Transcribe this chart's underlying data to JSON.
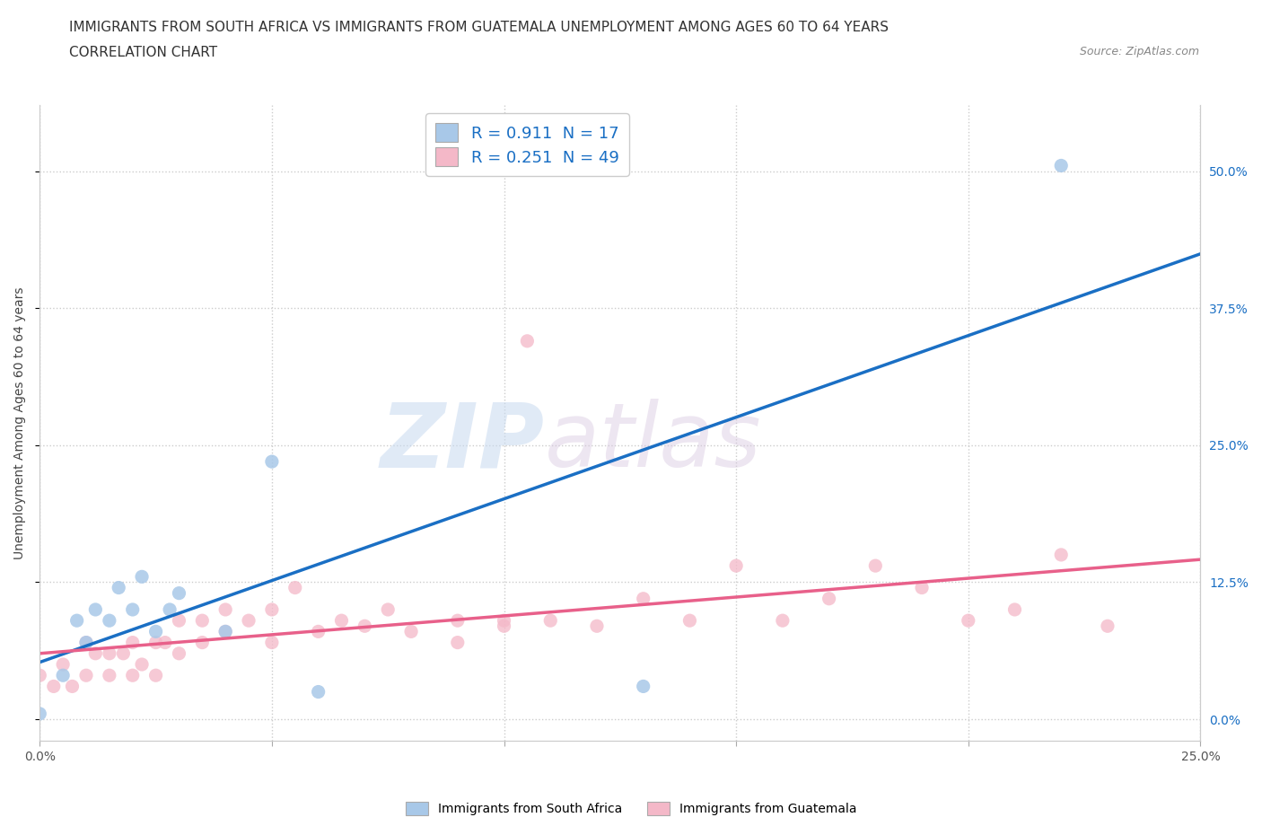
{
  "title_line1": "IMMIGRANTS FROM SOUTH AFRICA VS IMMIGRANTS FROM GUATEMALA UNEMPLOYMENT AMONG AGES 60 TO 64 YEARS",
  "title_line2": "CORRELATION CHART",
  "source": "Source: ZipAtlas.com",
  "ylabel": "Unemployment Among Ages 60 to 64 years",
  "r_south_africa": 0.911,
  "n_south_africa": 17,
  "r_guatemala": 0.251,
  "n_guatemala": 49,
  "color_south_africa": "#a8c8e8",
  "color_guatemala": "#f4b8c8",
  "line_color_south_africa": "#1a6fc4",
  "line_color_guatemala": "#e8608a",
  "xlim": [
    0.0,
    0.25
  ],
  "ylim": [
    -0.02,
    0.56
  ],
  "y_tick_right": [
    0.0,
    0.125,
    0.25,
    0.375,
    0.5
  ],
  "y_tick_right_labels": [
    "0.0%",
    "12.5%",
    "25.0%",
    "37.5%",
    "50.0%"
  ],
  "watermark_zip": "ZIP",
  "watermark_atlas": "atlas",
  "south_africa_x": [
    0.0,
    0.005,
    0.008,
    0.01,
    0.012,
    0.015,
    0.017,
    0.02,
    0.022,
    0.025,
    0.028,
    0.03,
    0.04,
    0.05,
    0.06,
    0.13,
    0.22
  ],
  "south_africa_y": [
    0.005,
    0.04,
    0.09,
    0.07,
    0.1,
    0.09,
    0.12,
    0.1,
    0.13,
    0.08,
    0.1,
    0.115,
    0.08,
    0.235,
    0.025,
    0.03,
    0.505
  ],
  "guatemala_x": [
    0.0,
    0.003,
    0.005,
    0.007,
    0.01,
    0.01,
    0.012,
    0.015,
    0.015,
    0.018,
    0.02,
    0.02,
    0.022,
    0.025,
    0.025,
    0.027,
    0.03,
    0.03,
    0.035,
    0.035,
    0.04,
    0.04,
    0.045,
    0.05,
    0.05,
    0.055,
    0.06,
    0.065,
    0.07,
    0.075,
    0.08,
    0.09,
    0.09,
    0.1,
    0.1,
    0.105,
    0.11,
    0.12,
    0.13,
    0.14,
    0.15,
    0.16,
    0.17,
    0.18,
    0.19,
    0.2,
    0.21,
    0.22,
    0.23
  ],
  "guatemala_y": [
    0.04,
    0.03,
    0.05,
    0.03,
    0.04,
    0.07,
    0.06,
    0.04,
    0.06,
    0.06,
    0.04,
    0.07,
    0.05,
    0.04,
    0.07,
    0.07,
    0.06,
    0.09,
    0.07,
    0.09,
    0.08,
    0.1,
    0.09,
    0.07,
    0.1,
    0.12,
    0.08,
    0.09,
    0.085,
    0.1,
    0.08,
    0.09,
    0.07,
    0.09,
    0.085,
    0.345,
    0.09,
    0.085,
    0.11,
    0.09,
    0.14,
    0.09,
    0.11,
    0.14,
    0.12,
    0.09,
    0.1,
    0.15,
    0.085
  ],
  "background_color": "#ffffff",
  "grid_color": "#cccccc",
  "title_fontsize": 11,
  "axis_label_fontsize": 10,
  "tick_fontsize": 10,
  "legend_fontsize": 13
}
